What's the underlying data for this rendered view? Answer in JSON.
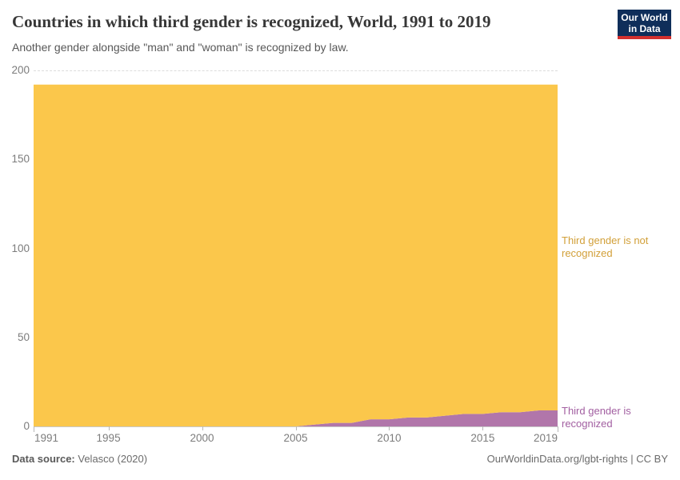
{
  "header": {
    "title": "Countries in which third gender is recognized, World, 1991 to 2019",
    "subtitle": "Another gender alongside \"man\" and \"woman\" is recognized by law.",
    "logo": {
      "line1": "Our World",
      "line2": "in Data"
    }
  },
  "footer": {
    "data_source_label": "Data source:",
    "data_source_value": "Velasco (2020)",
    "credit": "OurWorldinData.org/lgbt-rights | CC BY"
  },
  "colors": {
    "logo_background": "#0f2e5a",
    "logo_stripe": "#d3302e",
    "title_text": "#373737",
    "axis_text": "#7c7c7c",
    "gridline": "#dcdcdc"
  },
  "chart_data": {
    "type": "area",
    "stacked": true,
    "title": "Countries in which third gender is recognized, World, 1991 to 2019",
    "xlabel": "",
    "ylabel": "",
    "xlim": [
      1991,
      2019
    ],
    "ylim": [
      0,
      200
    ],
    "xticks": [
      1991,
      1995,
      2000,
      2005,
      2010,
      2015,
      2019
    ],
    "yticks": [
      0,
      50,
      100,
      150,
      200
    ],
    "grid": "horizontal-dashed",
    "legend_position": "right-of-plot",
    "x": [
      1991,
      1992,
      1993,
      1994,
      1995,
      1996,
      1997,
      1998,
      1999,
      2000,
      2001,
      2002,
      2003,
      2004,
      2005,
      2006,
      2007,
      2008,
      2009,
      2010,
      2011,
      2012,
      2013,
      2014,
      2015,
      2016,
      2017,
      2018,
      2019
    ],
    "series": [
      {
        "name": "Third gender is recognized",
        "color": "#b176aa",
        "label_color": "#a25fa1",
        "values": [
          0,
          0,
          0,
          0,
          0,
          0,
          0,
          0,
          0,
          0,
          0,
          0,
          0,
          0,
          0,
          1,
          2,
          2,
          4,
          4,
          5,
          5,
          6,
          7,
          7,
          8,
          8,
          9,
          9
        ]
      },
      {
        "name": "Third gender is not recognized",
        "color": "#fbc74b",
        "label_color": "#d2a039",
        "values": [
          192,
          192,
          192,
          192,
          192,
          192,
          192,
          192,
          192,
          192,
          192,
          192,
          192,
          192,
          192,
          191,
          190,
          190,
          188,
          188,
          187,
          187,
          186,
          185,
          185,
          184,
          184,
          183,
          183
        ]
      }
    ]
  }
}
